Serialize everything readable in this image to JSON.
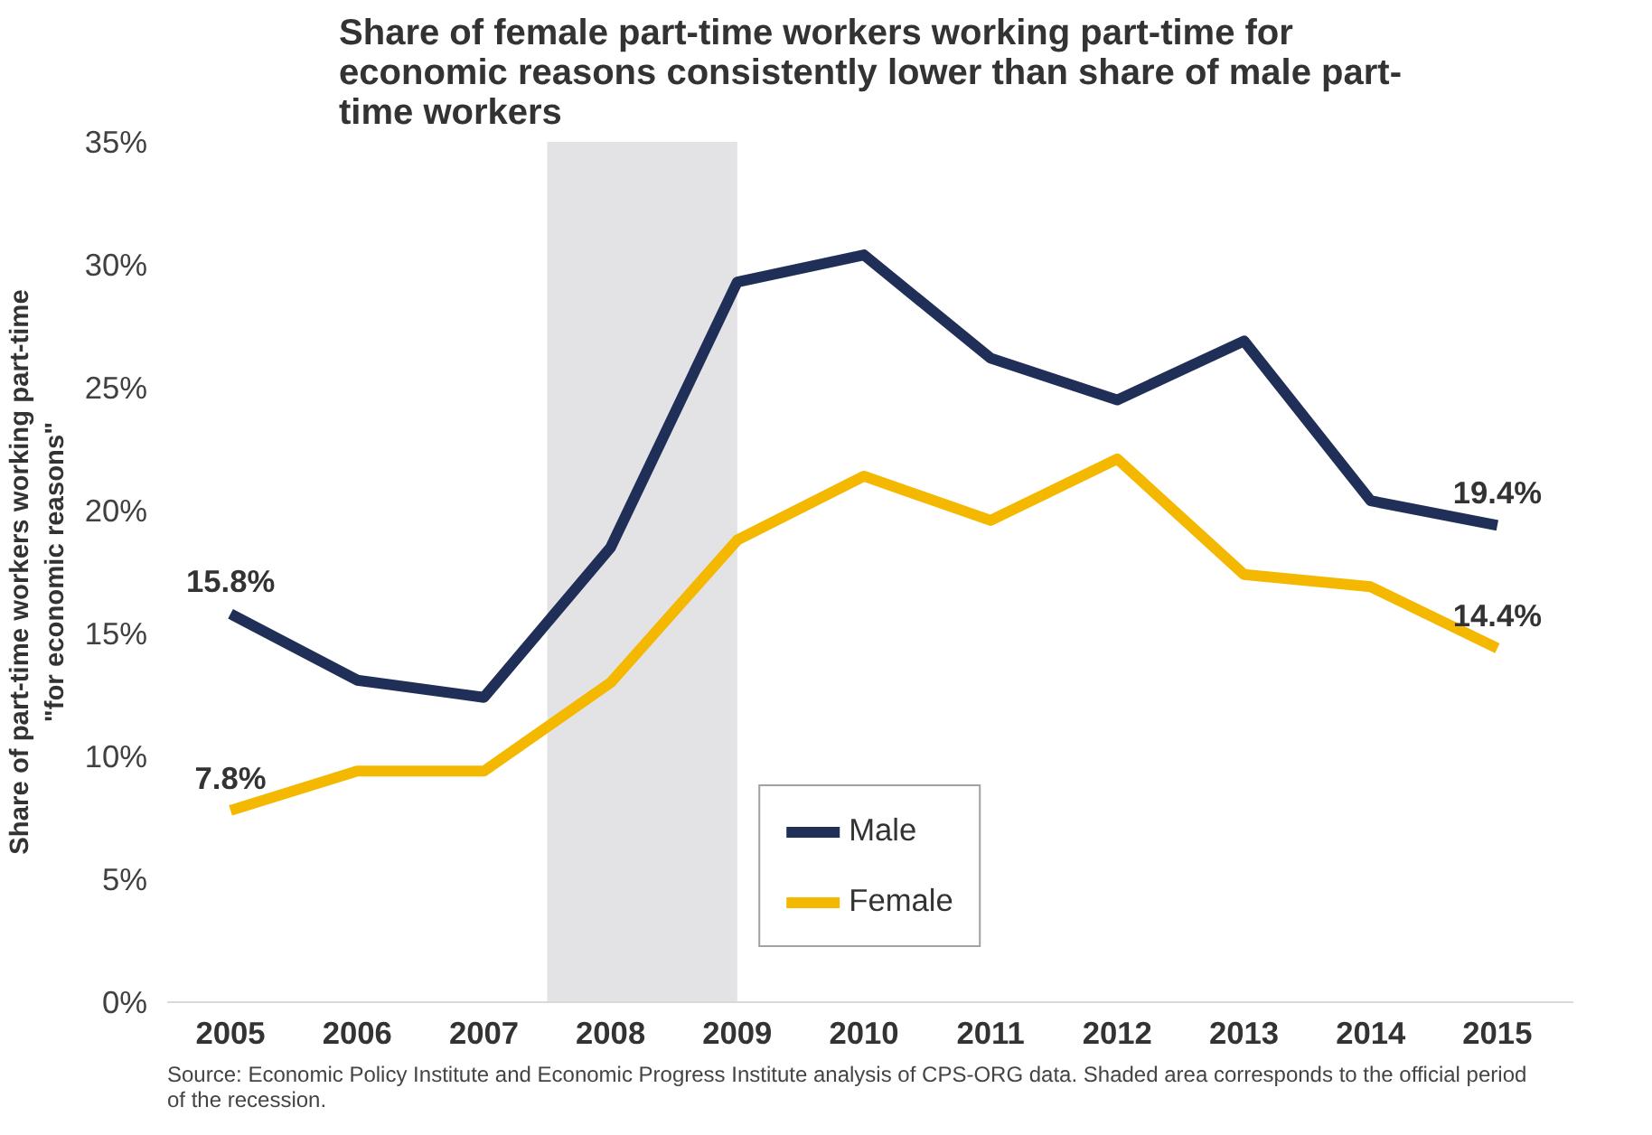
{
  "chart_data": {
    "type": "line",
    "title": "Share of female part-time workers working part-time for economic reasons consistently lower than share of male part-time workers",
    "ylabel": "Share of part-time workers working part-time \"for economic reasons\"",
    "x": [
      2005,
      2006,
      2007,
      2008,
      2009,
      2010,
      2011,
      2012,
      2013,
      2014,
      2015
    ],
    "xlim": [
      2004.5,
      2015.6
    ],
    "xticks": [
      2005,
      2006,
      2007,
      2008,
      2009,
      2010,
      2011,
      2012,
      2013,
      2014,
      2015
    ],
    "ylim": [
      0,
      35
    ],
    "yticks": [
      {
        "value": 0,
        "label": "0%"
      },
      {
        "value": 5,
        "label": "5%"
      },
      {
        "value": 10,
        "label": "10%"
      },
      {
        "value": 15,
        "label": "15%"
      },
      {
        "value": 20,
        "label": "20%"
      },
      {
        "value": 25,
        "label": "25%"
      },
      {
        "value": 30,
        "label": "30%"
      },
      {
        "value": 35,
        "label": "35%"
      }
    ],
    "series": [
      {
        "name": "Male",
        "color": "#1f2f57",
        "values": [
          15.8,
          13.1,
          12.4,
          18.5,
          29.3,
          30.4,
          26.2,
          24.5,
          26.9,
          20.4,
          19.4
        ],
        "value_labels": [
          "15.8%",
          null,
          null,
          null,
          null,
          null,
          null,
          null,
          null,
          null,
          "19.4%"
        ]
      },
      {
        "name": "Female",
        "color": "#f5b800",
        "values": [
          7.8,
          9.4,
          9.4,
          13.0,
          18.8,
          21.4,
          19.6,
          22.1,
          17.4,
          16.9,
          14.4
        ],
        "value_labels": [
          "7.8%",
          null,
          null,
          null,
          null,
          null,
          null,
          null,
          null,
          null,
          "14.4%"
        ]
      }
    ],
    "bands": [
      {
        "axis": "x",
        "from": 2007.5,
        "to": 2009.0,
        "color": "#e3e3e6"
      }
    ],
    "legend": "bottom",
    "grid": false,
    "marker": "none",
    "line_style": "solid",
    "annotations": [
      "Source: Economic Policy Institute and Economic Progress Institute analysis of CPS-ORG data. Shaded area corresponds to the official period of the recession."
    ]
  }
}
